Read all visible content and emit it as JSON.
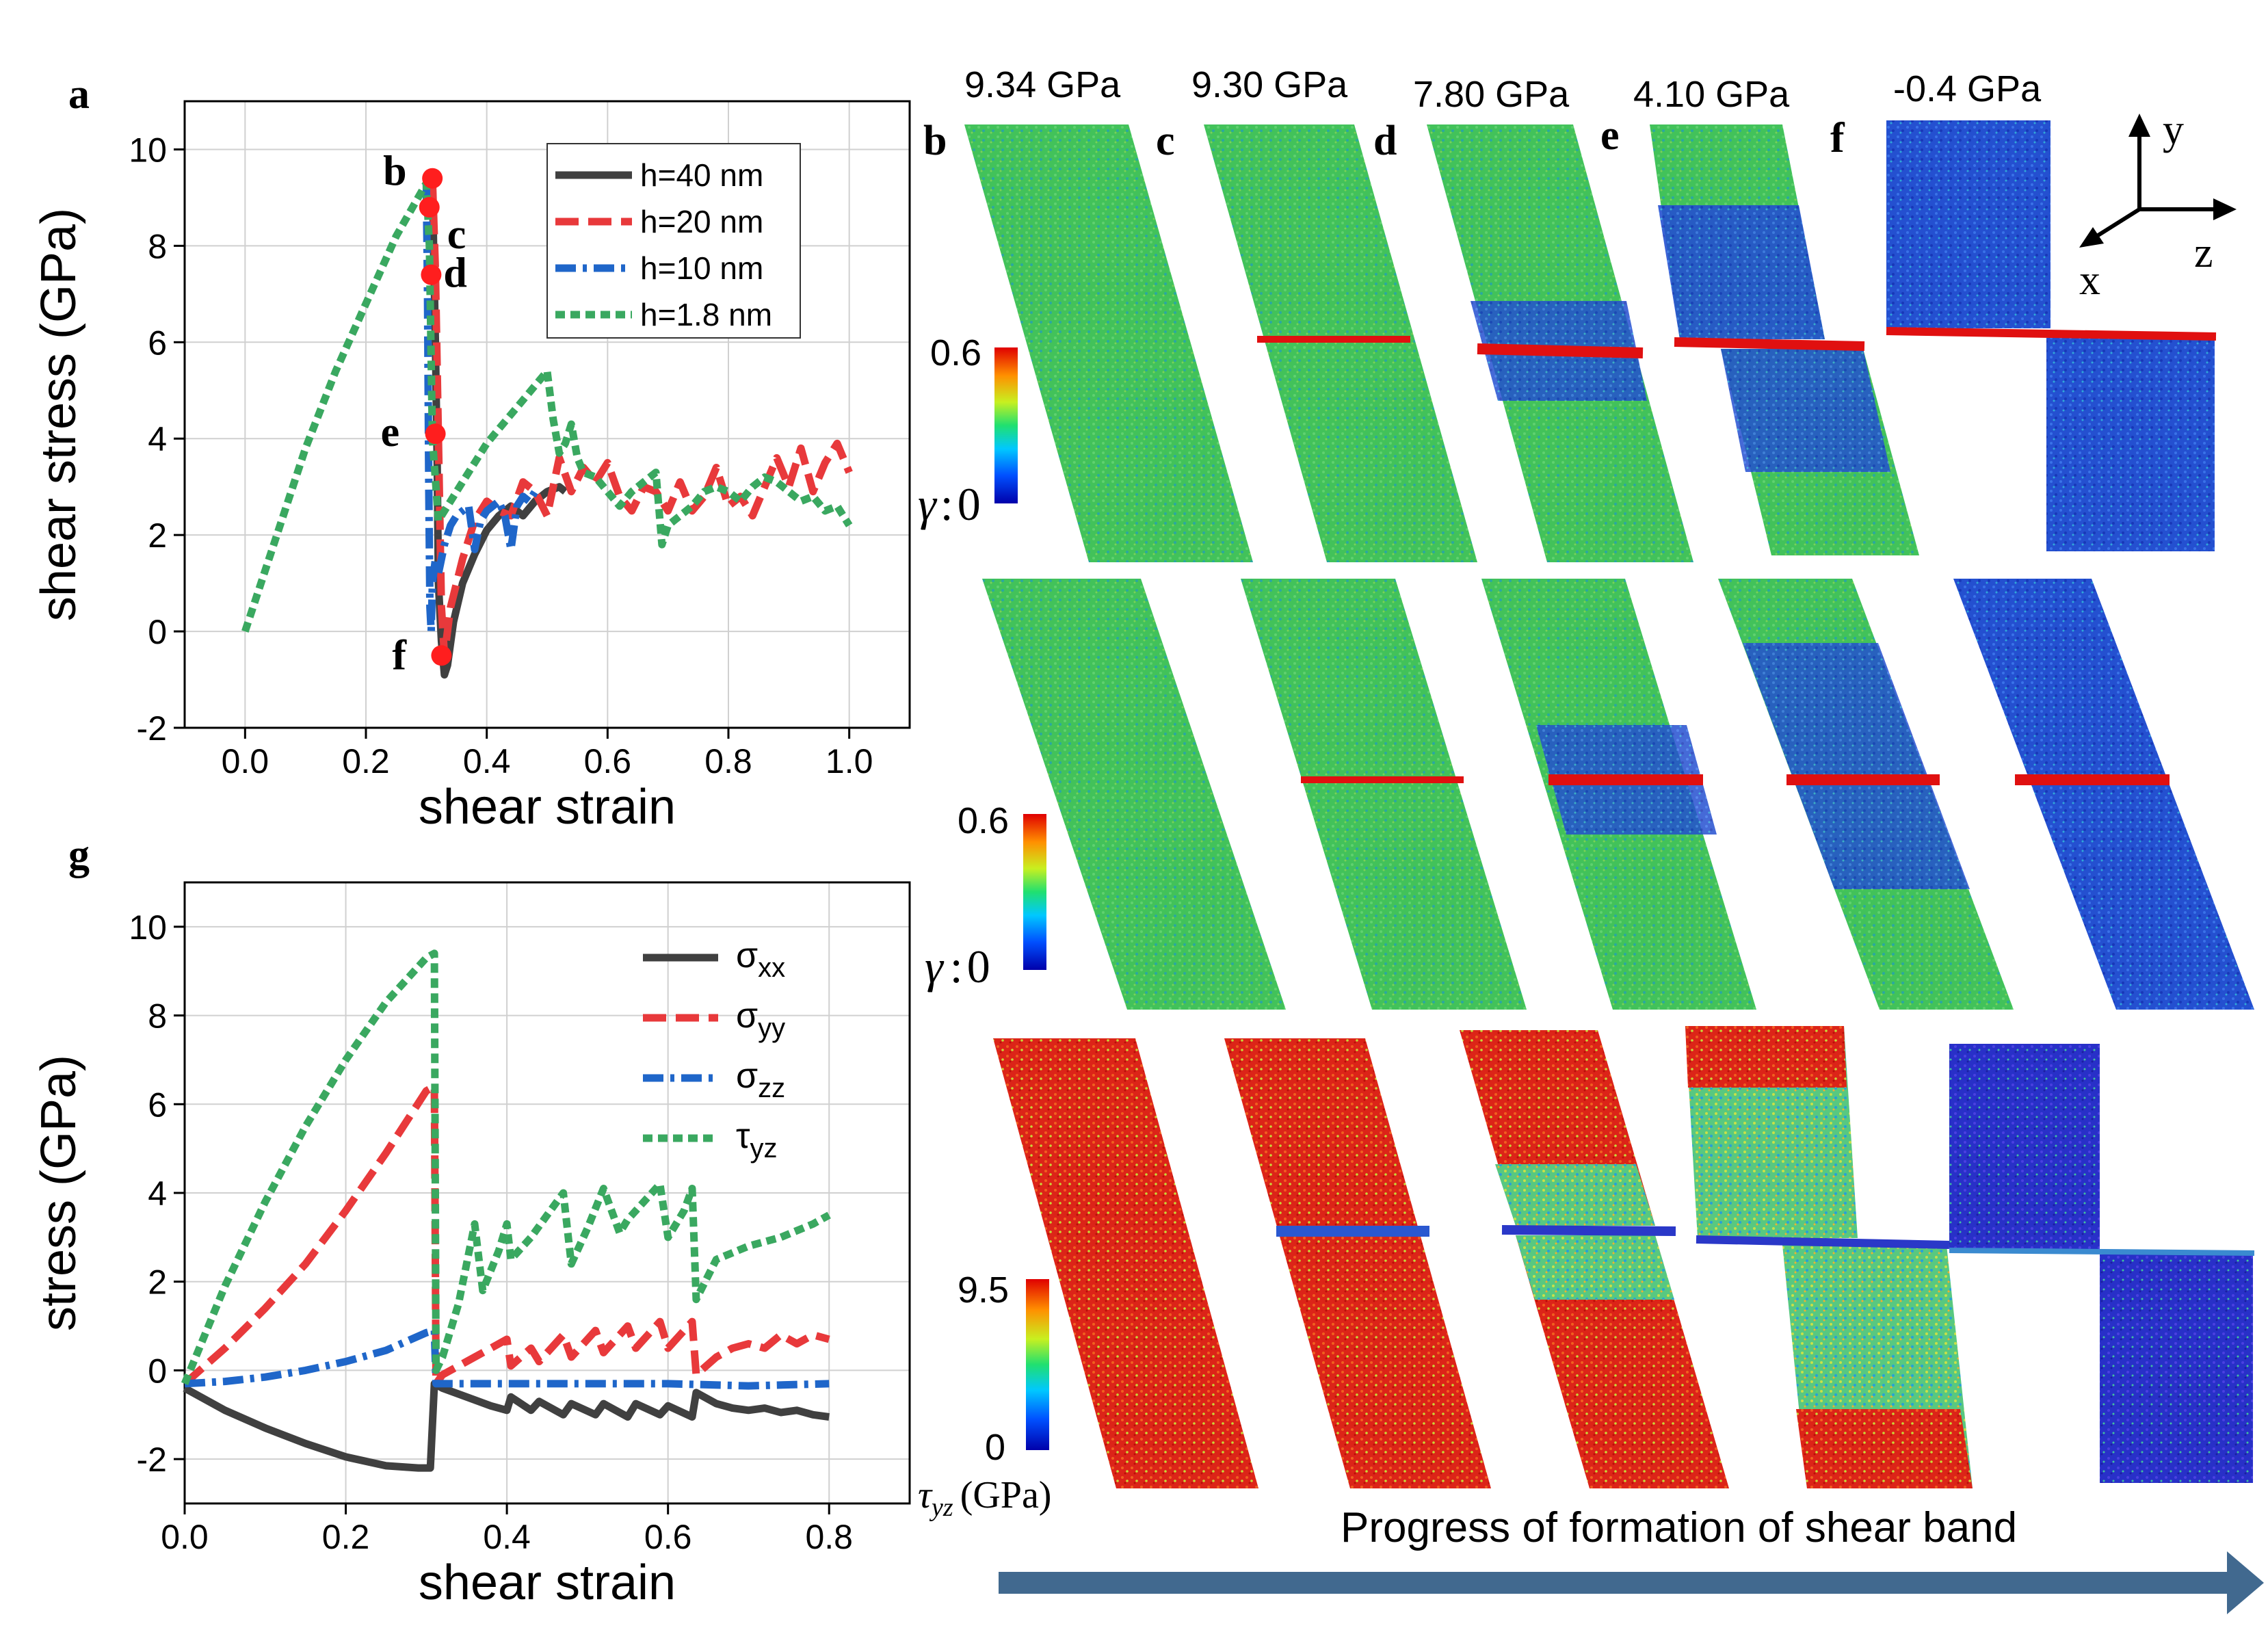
{
  "panel_labels": {
    "a": "a",
    "g": "g",
    "b": "b",
    "c": "c",
    "d": "d",
    "e": "e",
    "f": "f"
  },
  "stress_values": [
    "9.34 GPa",
    "9.30 GPa",
    "7.80 GPa",
    "4.10 GPa",
    "-0.4 GPa"
  ],
  "axes_triad": {
    "y": "y",
    "z": "z",
    "x": "x"
  },
  "colorbars": [
    {
      "max": "0.6",
      "min": "0",
      "symbol": "γ",
      "sep": ":"
    },
    {
      "max": "0.6",
      "min": "0",
      "symbol": "γ",
      "sep": ":"
    },
    {
      "max": "9.5",
      "min": "0",
      "label": "τ",
      "sub": "yz",
      "unit": "(GPa)"
    }
  ],
  "banner": "Progress of formation of shear band",
  "colors": {
    "green": "#3aa860",
    "red": "#e8393b",
    "blue": "#1f66c9",
    "black": "#404040",
    "arrow": "#41698f"
  },
  "chart_data": [
    {
      "type": "line",
      "xlabel": "shear strain",
      "ylabel": "shear stress (GPa)",
      "xlim": [
        -0.1,
        1.1
      ],
      "ylim": [
        -2,
        11
      ],
      "xticks": [
        0.0,
        0.2,
        0.4,
        0.6,
        0.8,
        1.0
      ],
      "yticks": [
        -2,
        0,
        2,
        4,
        6,
        8,
        10
      ],
      "grid": true,
      "legend_position": "top-right",
      "series": [
        {
          "name": "h=40 nm",
          "color": "#404040",
          "dash": "solid",
          "x": [
            0.31,
            0.312,
            0.315,
            0.318,
            0.32,
            0.325,
            0.33,
            0.335,
            0.345,
            0.36,
            0.38,
            0.4,
            0.42,
            0.44,
            0.46,
            0.48,
            0.5,
            0.52,
            0.53
          ],
          "y": [
            9.4,
            8.0,
            6.0,
            3.5,
            1.0,
            -0.2,
            -0.9,
            -0.7,
            0.2,
            1.0,
            1.6,
            2.1,
            2.4,
            2.6,
            2.4,
            2.7,
            2.9,
            3.0,
            2.9
          ]
        },
        {
          "name": "h=20 nm",
          "color": "#e8393b",
          "dash": "dashed",
          "x": [
            0.31,
            0.315,
            0.32,
            0.325,
            0.33,
            0.34,
            0.36,
            0.38,
            0.4,
            0.42,
            0.44,
            0.46,
            0.48,
            0.5,
            0.52,
            0.54,
            0.56,
            0.58,
            0.6,
            0.62,
            0.64,
            0.66,
            0.68,
            0.7,
            0.72,
            0.74,
            0.76,
            0.78,
            0.8,
            0.82,
            0.84,
            0.86,
            0.88,
            0.9,
            0.92,
            0.94,
            0.96,
            0.98,
            1.0
          ],
          "y": [
            9.4,
            7.5,
            4.0,
            0.5,
            -0.5,
            0.5,
            1.5,
            2.3,
            2.7,
            2.5,
            2.4,
            3.1,
            2.9,
            2.4,
            3.6,
            2.9,
            3.4,
            3.1,
            3.5,
            2.8,
            2.5,
            3.0,
            2.9,
            2.5,
            3.1,
            2.5,
            2.8,
            3.4,
            2.6,
            2.8,
            2.4,
            3.0,
            3.6,
            3.0,
            3.8,
            2.9,
            3.5,
            3.9,
            3.3
          ]
        },
        {
          "name": "h=10 nm",
          "color": "#1f66c9",
          "dash": "dashdot",
          "x": [
            0.3,
            0.302,
            0.304,
            0.306,
            0.308,
            0.31,
            0.315,
            0.32,
            0.33,
            0.34,
            0.35,
            0.36,
            0.37,
            0.38,
            0.39,
            0.4,
            0.41,
            0.42,
            0.43,
            0.44,
            0.45,
            0.46,
            0.47,
            0.48
          ],
          "y": [
            9.3,
            7.0,
            3.0,
            0.5,
            0.0,
            1.0,
            1.5,
            1.2,
            1.8,
            2.2,
            2.4,
            2.5,
            2.6,
            1.7,
            2.3,
            2.5,
            2.6,
            2.7,
            2.4,
            1.7,
            2.6,
            2.8,
            2.7,
            2.9
          ]
        },
        {
          "name": "h=1.8 nm",
          "color": "#3aa860",
          "dash": "dotted",
          "x": [
            0.0,
            0.05,
            0.1,
            0.15,
            0.2,
            0.25,
            0.3,
            0.305,
            0.31,
            0.32,
            0.34,
            0.36,
            0.38,
            0.4,
            0.42,
            0.44,
            0.46,
            0.48,
            0.5,
            0.51,
            0.52,
            0.53,
            0.54,
            0.55,
            0.56,
            0.58,
            0.6,
            0.62,
            0.64,
            0.66,
            0.68,
            0.69,
            0.7,
            0.72,
            0.74,
            0.76,
            0.78,
            0.8,
            0.82,
            0.84,
            0.86,
            0.88,
            0.9,
            0.92,
            0.94,
            0.96,
            0.98,
            1.0
          ],
          "y": [
            0.0,
            1.9,
            3.8,
            5.4,
            6.8,
            8.2,
            9.3,
            8.0,
            4.0,
            2.3,
            2.7,
            3.1,
            3.5,
            3.9,
            4.2,
            4.5,
            4.8,
            5.1,
            5.4,
            4.4,
            3.7,
            3.9,
            4.3,
            3.6,
            3.3,
            3.2,
            2.9,
            2.6,
            2.9,
            3.1,
            3.3,
            1.8,
            2.2,
            2.4,
            2.6,
            2.9,
            3.0,
            2.9,
            2.7,
            3.0,
            3.2,
            3.1,
            2.9,
            2.7,
            2.8,
            2.5,
            2.6,
            2.2
          ]
        }
      ],
      "annotations": [
        {
          "label": "b",
          "x": 0.31,
          "y": 9.4
        },
        {
          "label": "c",
          "x": 0.305,
          "y": 8.8
        },
        {
          "label": "d",
          "x": 0.308,
          "y": 7.4
        },
        {
          "label": "e",
          "x": 0.315,
          "y": 4.1
        },
        {
          "label": "f",
          "x": 0.325,
          "y": -0.5
        }
      ]
    },
    {
      "type": "line",
      "xlabel": "shear strain",
      "ylabel": "stress (GPa)",
      "xlim": [
        0.0,
        0.9
      ],
      "ylim": [
        -3,
        11
      ],
      "xticks": [
        0.0,
        0.2,
        0.4,
        0.6,
        0.8
      ],
      "yticks": [
        -2,
        0,
        2,
        4,
        6,
        8,
        10
      ],
      "grid": true,
      "legend_position": "top-right",
      "series": [
        {
          "name": "σ",
          "sub": "xx",
          "color": "#404040",
          "dash": "solid",
          "x": [
            0.0,
            0.05,
            0.1,
            0.15,
            0.2,
            0.25,
            0.29,
            0.305,
            0.31,
            0.32,
            0.35,
            0.38,
            0.4,
            0.405,
            0.43,
            0.44,
            0.47,
            0.48,
            0.51,
            0.52,
            0.55,
            0.56,
            0.59,
            0.6,
            0.63,
            0.635,
            0.66,
            0.68,
            0.7,
            0.72,
            0.74,
            0.76,
            0.78,
            0.8
          ],
          "y": [
            -0.4,
            -0.9,
            -1.3,
            -1.65,
            -1.95,
            -2.15,
            -2.2,
            -2.2,
            -0.3,
            -0.4,
            -0.6,
            -0.8,
            -0.9,
            -0.6,
            -0.9,
            -0.7,
            -1.0,
            -0.75,
            -1.0,
            -0.75,
            -1.05,
            -0.75,
            -1.0,
            -0.8,
            -1.05,
            -0.5,
            -0.75,
            -0.85,
            -0.9,
            -0.85,
            -0.95,
            -0.9,
            -1.0,
            -1.05
          ]
        },
        {
          "name": "σ",
          "sub": "yy",
          "color": "#e8393b",
          "dash": "dashed",
          "x": [
            0.0,
            0.05,
            0.1,
            0.15,
            0.2,
            0.25,
            0.3,
            0.31,
            0.312,
            0.32,
            0.35,
            0.38,
            0.4,
            0.405,
            0.43,
            0.44,
            0.47,
            0.48,
            0.51,
            0.52,
            0.55,
            0.56,
            0.59,
            0.6,
            0.63,
            0.635,
            0.66,
            0.68,
            0.7,
            0.72,
            0.74,
            0.76,
            0.78,
            0.8
          ],
          "y": [
            -0.3,
            0.5,
            1.4,
            2.4,
            3.6,
            4.9,
            6.3,
            6.4,
            -0.3,
            -0.1,
            0.2,
            0.5,
            0.7,
            0.1,
            0.5,
            0.2,
            0.8,
            0.3,
            0.9,
            0.4,
            1.0,
            0.5,
            1.1,
            0.5,
            1.1,
            -0.1,
            0.3,
            0.5,
            0.6,
            0.5,
            0.8,
            0.6,
            0.8,
            0.7
          ]
        },
        {
          "name": "σ",
          "sub": "zz",
          "color": "#1f66c9",
          "dash": "dashdot",
          "x": [
            0.0,
            0.05,
            0.1,
            0.15,
            0.2,
            0.25,
            0.3,
            0.31,
            0.312,
            0.4,
            0.5,
            0.6,
            0.7,
            0.8
          ],
          "y": [
            -0.3,
            -0.25,
            -0.15,
            0.0,
            0.2,
            0.45,
            0.85,
            0.9,
            -0.3,
            -0.3,
            -0.3,
            -0.3,
            -0.35,
            -0.3
          ]
        },
        {
          "name": "τ",
          "sub": "yz",
          "color": "#3aa860",
          "dash": "dotted",
          "x": [
            0.0,
            0.05,
            0.1,
            0.15,
            0.2,
            0.25,
            0.3,
            0.31,
            0.312,
            0.32,
            0.34,
            0.36,
            0.37,
            0.39,
            0.4,
            0.405,
            0.43,
            0.45,
            0.47,
            0.48,
            0.5,
            0.52,
            0.54,
            0.55,
            0.57,
            0.59,
            0.6,
            0.62,
            0.63,
            0.635,
            0.66,
            0.7,
            0.74,
            0.78,
            0.8
          ],
          "y": [
            -0.3,
            1.9,
            3.8,
            5.5,
            7.0,
            8.3,
            9.3,
            9.4,
            0.0,
            0.3,
            1.5,
            3.3,
            1.8,
            2.7,
            3.3,
            2.5,
            3.0,
            3.5,
            4.0,
            2.4,
            3.2,
            4.1,
            3.1,
            3.4,
            3.8,
            4.2,
            3.0,
            3.6,
            4.1,
            1.6,
            2.5,
            2.8,
            3.0,
            3.3,
            3.5
          ]
        }
      ]
    }
  ]
}
